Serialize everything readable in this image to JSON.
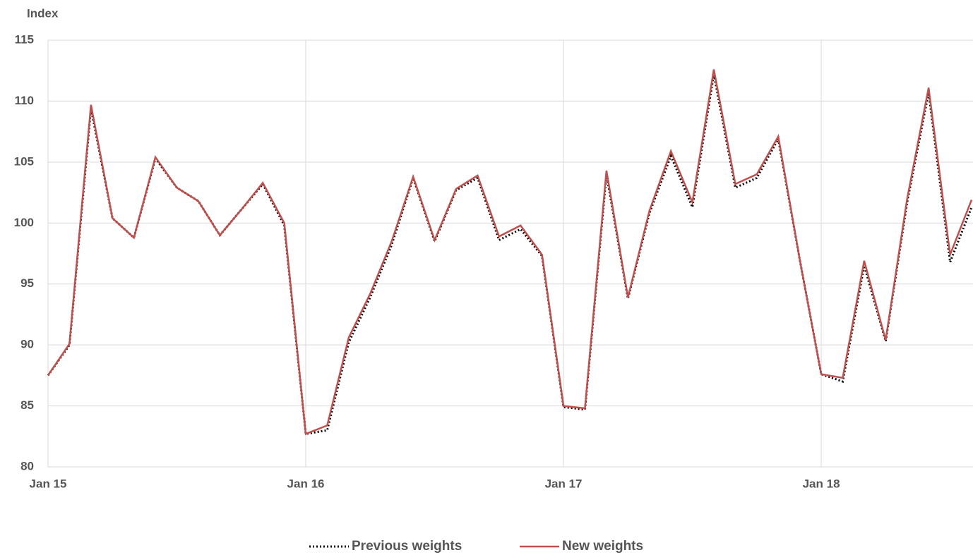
{
  "chart_data": {
    "type": "line",
    "y_label": "Index",
    "categories": [
      "Jan 15",
      null,
      null,
      null,
      null,
      null,
      null,
      null,
      null,
      null,
      null,
      null,
      "Jan 16",
      null,
      null,
      null,
      null,
      null,
      null,
      null,
      null,
      null,
      null,
      null,
      "Jan 17",
      null,
      null,
      null,
      null,
      null,
      null,
      null,
      null,
      null,
      null,
      null,
      "Jan 18",
      null,
      null,
      null,
      null,
      null,
      null,
      null
    ],
    "series": [
      {
        "name": "Previous weights",
        "color": "#000000",
        "style": "dotted",
        "values": [
          87.5,
          90.0,
          109.4,
          100.4,
          98.8,
          105.3,
          102.9,
          101.8,
          99.0,
          101.1,
          103.2,
          99.8,
          82.7,
          83.0,
          90.2,
          93.9,
          98.2,
          103.7,
          98.5,
          102.7,
          103.7,
          98.6,
          99.5,
          97.3,
          84.9,
          84.7,
          104.0,
          93.8,
          100.8,
          105.5,
          101.3,
          112.2,
          102.9,
          103.7,
          106.9,
          97.0,
          87.6,
          87.0,
          96.5,
          90.3,
          101.7,
          110.7,
          96.8,
          101.3
        ]
      },
      {
        "name": "New weights",
        "color": "#c0504d",
        "style": "solid",
        "values": [
          87.5,
          90.1,
          109.7,
          100.4,
          98.8,
          105.4,
          102.9,
          101.8,
          99.0,
          101.1,
          103.3,
          100.0,
          82.7,
          83.4,
          90.6,
          94.2,
          98.5,
          103.8,
          98.6,
          102.8,
          103.9,
          98.9,
          99.8,
          97.4,
          85.0,
          84.8,
          104.3,
          93.9,
          101.0,
          105.9,
          101.7,
          112.6,
          103.2,
          104.0,
          107.1,
          97.0,
          87.6,
          87.3,
          96.9,
          90.4,
          102.0,
          111.1,
          97.4,
          101.9
        ]
      }
    ],
    "ylim": [
      80,
      115
    ],
    "yticks": [
      80,
      85,
      90,
      95,
      100,
      105,
      110,
      115
    ],
    "grid": true,
    "legend": "bottom"
  }
}
